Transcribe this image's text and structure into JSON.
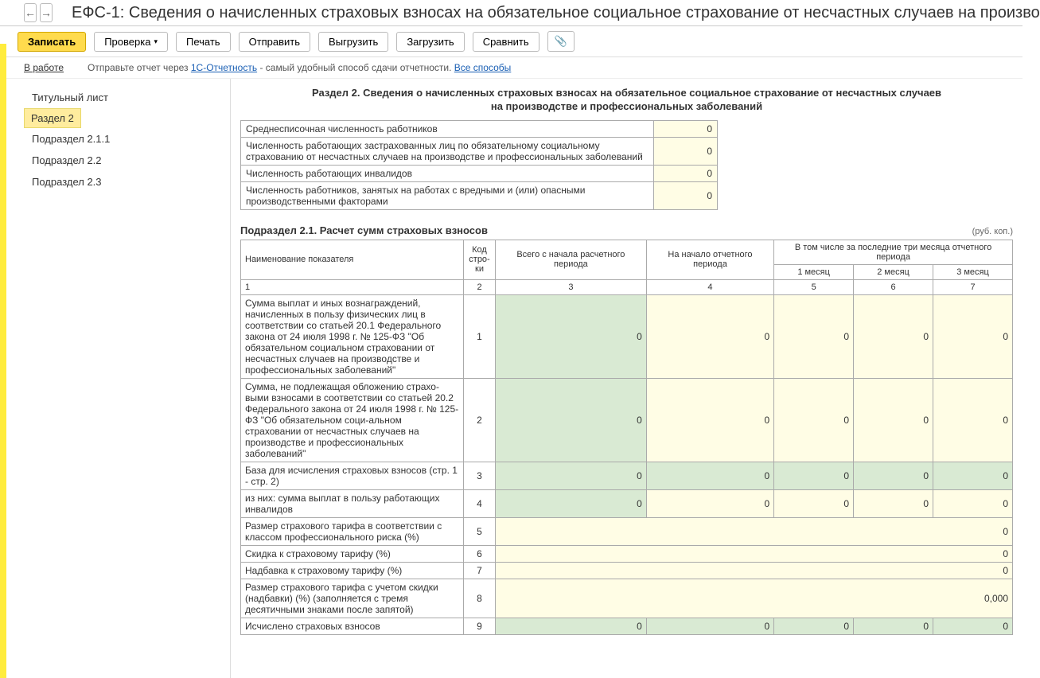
{
  "title": "ЕФС-1: Сведения о начисленных страховых взносах на обязательное социальное страхование от несчастных случаев на произво",
  "toolbar": {
    "save": "Записать",
    "check": "Проверка",
    "print": "Печать",
    "send": "Отправить",
    "upload": "Выгрузить",
    "download": "Загрузить",
    "compare": "Сравнить"
  },
  "info": {
    "status": "В работе",
    "hint": "Отправьте отчет через ",
    "link1": "1С-Отчетность",
    "hint2": " - самый удобный способ сдачи отчетности. ",
    "link2": "Все способы"
  },
  "nav": [
    {
      "label": "Титульный лист",
      "active": false
    },
    {
      "label": "Раздел 2",
      "active": true
    },
    {
      "label": "Подраздел 2.1.1",
      "active": false
    },
    {
      "label": "Подраздел 2.2",
      "active": false
    },
    {
      "label": "Подраздел 2.3",
      "active": false
    }
  ],
  "section": {
    "title1": "Раздел 2. Сведения о начисленных страховых взносах на обязательное социальное страхование от несчастных случаев",
    "title2": "на производстве и профессиональных заболеваний",
    "summary": [
      {
        "label": "Среднесписочная численность работников",
        "val": "0"
      },
      {
        "label": "Численность работающих застрахованных лиц по обязательному социальному страхованию от несчастных случаев на производстве и профессиональных заболеваний",
        "val": "0"
      },
      {
        "label": "Численность работающих инвалидов",
        "val": "0"
      },
      {
        "label": "Численность работников, занятых на работах с вредными и (или) опасными производственными факторами",
        "val": "0"
      }
    ],
    "subtitle": "Подраздел 2.1. Расчет сумм страховых взносов",
    "unit": "(руб. коп.)",
    "headers": {
      "name": "Наименование показателя",
      "code": "Код стро-ки",
      "total": "Всего с начала расчетного периода",
      "start": "На начало отчетного периода",
      "months_hdr": "В том числе за последние три месяца отчетного периода",
      "m1": "1 месяц",
      "m2": "2 месяц",
      "m3": "3 месяц",
      "c1": "1",
      "c2": "2",
      "c3": "3",
      "c4": "4",
      "c5": "5",
      "c6": "6",
      "c7": "7"
    },
    "rows": [
      {
        "desc": "Сумма выплат и иных вознаграждений, начисленных в пользу физических лиц в соответствии со статьей 20.1 Федерального закона от 24 июля 1998 г. № 125-ФЗ \"Об обязательном социальном страховании от несчастных случаев на производстве и профессиональных заболеваний\"",
        "code": "1",
        "type": "5col",
        "bg_total": "green",
        "vals": [
          "0",
          "0",
          "0",
          "0",
          "0"
        ]
      },
      {
        "desc": "Сумма, не подлежащая обложению страхо-выми взносами в соответствии со статьей 20.2 Федерального закона от 24 июля 1998 г. № 125-ФЗ \"Об обязательном соци-альном страховании от несчастных случаев на производстве и профессиональных заболеваний\"",
        "code": "2",
        "type": "5col",
        "bg_total": "green",
        "vals": [
          "0",
          "0",
          "0",
          "0",
          "0"
        ]
      },
      {
        "desc": "База для исчисления страховых взносов (стр. 1 - стр. 2)",
        "code": "3",
        "type": "5col",
        "bg": "green",
        "vals": [
          "0",
          "0",
          "0",
          "0",
          "0"
        ]
      },
      {
        "desc": "из них: сумма выплат в пользу работающих инвалидов",
        "code": "4",
        "type": "5col",
        "bg_total": "green",
        "vals": [
          "0",
          "0",
          "0",
          "0",
          "0"
        ]
      },
      {
        "desc": "Размер страхового тарифа в соответствии с классом профессионального риска (%)",
        "code": "5",
        "type": "1col",
        "bg": "yellow",
        "val": "0"
      },
      {
        "desc": "Скидка к страховому тарифу (%)",
        "code": "6",
        "type": "1col",
        "bg": "yellow",
        "val": "0"
      },
      {
        "desc": "Надбавка к страховому тарифу (%)",
        "code": "7",
        "type": "1col",
        "bg": "yellow",
        "val": "0"
      },
      {
        "desc": "Размер страхового тарифа с учетом скидки (надбавки) (%) (заполняется с тремя десятичными знаками после запятой)",
        "code": "8",
        "type": "1col",
        "bg": "yellow",
        "val": "0,000"
      },
      {
        "desc": "Исчислено страховых взносов",
        "code": "9",
        "type": "5col",
        "bg": "green",
        "vals": [
          "0",
          "0",
          "0",
          "0",
          "0"
        ]
      }
    ]
  }
}
